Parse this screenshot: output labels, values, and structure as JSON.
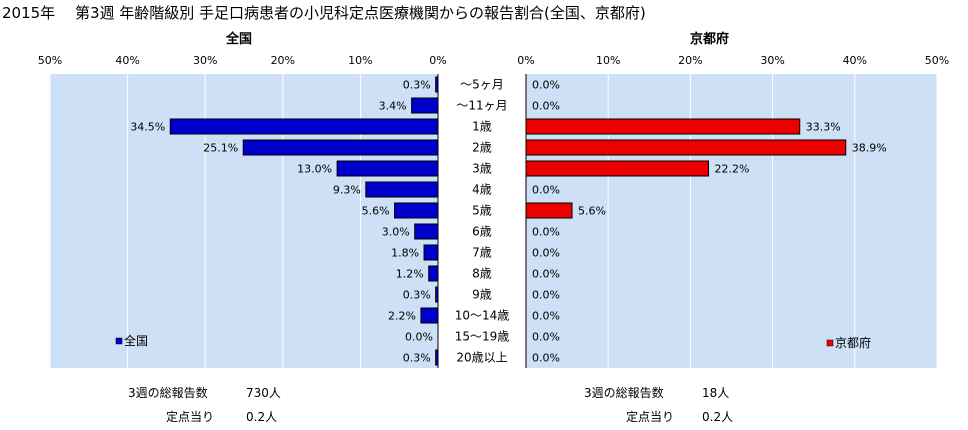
{
  "title": "2015年　 第3週 年齢階級別 手足口病患者の小児科定点医療機関からの報告割合(全国、京都府)",
  "age_groups": [
    "～5ヶ月",
    "～11ヶ月",
    "1歳",
    "2歳",
    "3歳",
    "4歳",
    "5歳",
    "6歳",
    "7歳",
    "8歳",
    "9歳",
    "10～14歳",
    "15～19歳",
    "20歳以上"
  ],
  "chart_data": [
    {
      "type": "bar",
      "title": "全国",
      "orientation": "horizontal-reversed",
      "categories": [
        "～5ヶ月",
        "～11ヶ月",
        "1歳",
        "2歳",
        "3歳",
        "4歳",
        "5歳",
        "6歳",
        "7歳",
        "8歳",
        "9歳",
        "10～14歳",
        "15～19歳",
        "20歳以上"
      ],
      "series": [
        {
          "name": "全国",
          "values": [
            0.3,
            3.4,
            34.5,
            25.1,
            13.0,
            9.3,
            5.6,
            3.0,
            1.8,
            1.2,
            0.3,
            2.2,
            0.0,
            0.3
          ]
        }
      ],
      "data_labels": [
        "0.3%",
        "3.4%",
        "34.5%",
        "25.1%",
        "13.0%",
        "9.3%",
        "5.6%",
        "3.0%",
        "1.8%",
        "1.2%",
        "0.3%",
        "2.2%",
        "0.0%",
        "0.3%"
      ],
      "xlim": [
        0,
        50
      ],
      "ticks": [
        "50%",
        "40%",
        "30%",
        "20%",
        "10%",
        "0%"
      ],
      "color": "#0000cc",
      "legend_position": "bottom-left",
      "grid": true
    },
    {
      "type": "bar",
      "title": "京都府",
      "orientation": "horizontal",
      "categories": [
        "～5ヶ月",
        "～11ヶ月",
        "1歳",
        "2歳",
        "3歳",
        "4歳",
        "5歳",
        "6歳",
        "7歳",
        "8歳",
        "9歳",
        "10～14歳",
        "15～19歳",
        "20歳以上"
      ],
      "series": [
        {
          "name": "京都府",
          "values": [
            0.0,
            0.0,
            33.3,
            38.9,
            22.2,
            0.0,
            5.6,
            0.0,
            0.0,
            0.0,
            0.0,
            0.0,
            0.0,
            0.0
          ]
        }
      ],
      "data_labels": [
        "0.0%",
        "0.0%",
        "33.3%",
        "38.9%",
        "22.2%",
        "0.0%",
        "5.6%",
        "0.0%",
        "0.0%",
        "0.0%",
        "0.0%",
        "0.0%",
        "0.0%",
        "0.0%"
      ],
      "xlim": [
        0,
        50
      ],
      "ticks": [
        "0%",
        "10%",
        "20%",
        "30%",
        "40%",
        "50%"
      ],
      "color": "#ee0000",
      "legend_position": "bottom-right",
      "grid": true
    }
  ],
  "footer": {
    "national": {
      "total_label": "3週の総報告数",
      "total_value": "730人",
      "per_label": "定点当り",
      "per_value": "0.2人"
    },
    "kyoto": {
      "total_label": "3週の総報告数",
      "total_value": "18人",
      "per_label": "定点当り",
      "per_value": "0.2人"
    }
  },
  "colors": {
    "plot_bg": "#cde0f5",
    "grid": "#ffffff",
    "national_bar": "#0000cc",
    "kyoto_bar": "#ee0000"
  }
}
